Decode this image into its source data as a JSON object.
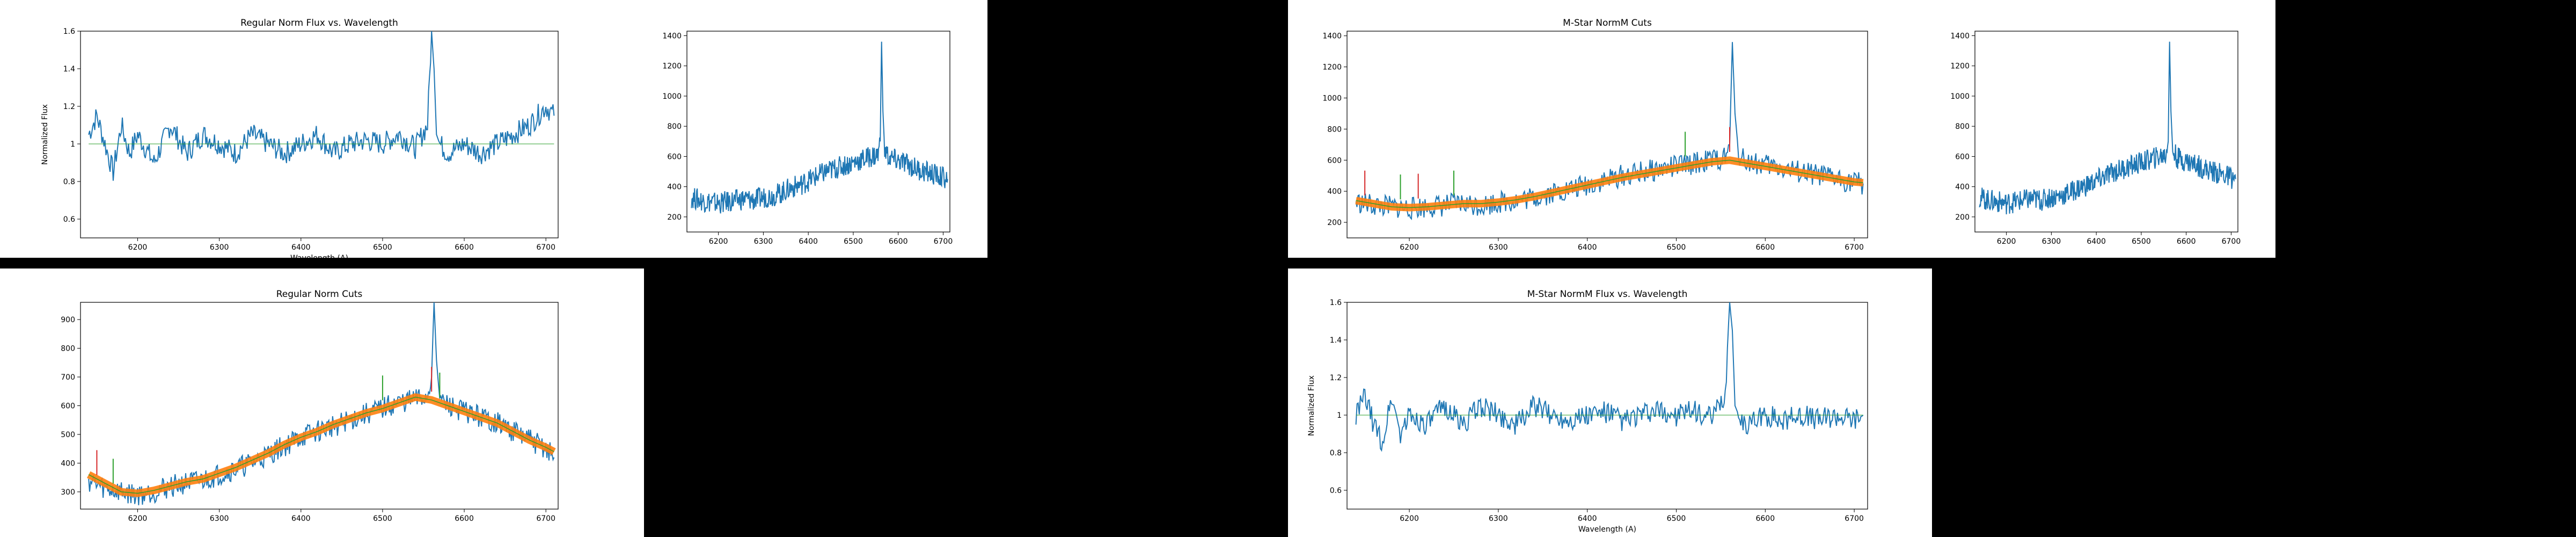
{
  "colors": {
    "spectrum": "#1f77b4",
    "fit": "#ff7f0e",
    "fit_line": "#2ca02c",
    "cut_red": "#d62728",
    "cut_green": "#2ca02c",
    "background": "#000000",
    "panel": "#ffffff"
  },
  "chart_data": [
    {
      "id": "regular-norm-flux",
      "type": "line",
      "title": "Regular Norm Flux vs. Wavelength",
      "xlabel": "Wavelength (A)",
      "ylabel": "Normalized Flux",
      "xlim": [
        6130,
        6715
      ],
      "ylim": [
        0.5,
        1.6
      ],
      "xticks": [
        6200,
        6300,
        6400,
        6500,
        6600,
        6700
      ],
      "yticks": [
        0.6,
        0.8,
        1.0,
        1.2,
        1.4,
        1.6
      ],
      "grid": false,
      "series": [
        {
          "x": [
            6140,
            6150,
            6160,
            6170,
            6180,
            6190,
            6200,
            6220,
            6240,
            6260,
            6280,
            6300,
            6320,
            6340,
            6360,
            6380,
            6400,
            6420,
            6440,
            6460,
            6480,
            6500,
            6520,
            6540,
            6555,
            6560,
            6563,
            6566,
            6570,
            6580,
            6600,
            6620,
            6640,
            6660,
            6680,
            6700,
            6710
          ],
          "y": [
            1.05,
            1.15,
            1.0,
            0.85,
            1.1,
            0.95,
            1.05,
            0.9,
            1.1,
            0.95,
            1.05,
            1.0,
            0.95,
            1.05,
            1.0,
            0.95,
            1.0,
            1.05,
            0.95,
            1.0,
            1.02,
            1.0,
            1.05,
            0.98,
            1.1,
            1.6,
            1.4,
            1.05,
            1.0,
            0.95,
            1.0,
            0.95,
            1.0,
            1.05,
            1.1,
            1.2,
            1.15
          ]
        }
      ],
      "continuum": {
        "x": [
          6140,
          6710
        ],
        "y": [
          1.0,
          1.0
        ]
      }
    },
    {
      "id": "raw-flux-top",
      "type": "line",
      "title": "",
      "xlabel": "",
      "ylabel": "",
      "xlim": [
        6130,
        6715
      ],
      "ylim": [
        100,
        1430
      ],
      "xticks": [
        6200,
        6300,
        6400,
        6500,
        6600,
        6700
      ],
      "yticks": [
        200,
        400,
        600,
        800,
        1000,
        1200,
        1400
      ],
      "grid": false,
      "series": [
        {
          "x": [
            6140,
            6160,
            6180,
            6200,
            6220,
            6240,
            6260,
            6280,
            6300,
            6320,
            6340,
            6360,
            6380,
            6400,
            6420,
            6440,
            6460,
            6480,
            6500,
            6520,
            6540,
            6555,
            6560,
            6563,
            6566,
            6570,
            6580,
            6600,
            6620,
            6640,
            6660,
            6680,
            6700,
            6710
          ],
          "y": [
            330,
            310,
            300,
            290,
            300,
            310,
            320,
            310,
            330,
            340,
            360,
            390,
            410,
            440,
            470,
            500,
            520,
            540,
            560,
            580,
            600,
            610,
            700,
            1360,
            900,
            640,
            590,
            570,
            550,
            520,
            500,
            480,
            460,
            450
          ]
        }
      ]
    },
    {
      "id": "mstar-normm-cuts",
      "type": "line",
      "title": "M-Star NormM Cuts",
      "xlabel": "",
      "ylabel": "",
      "xlim": [
        6130,
        6715
      ],
      "ylim": [
        100,
        1430
      ],
      "xticks": [
        6200,
        6300,
        6400,
        6500,
        6600,
        6700
      ],
      "yticks": [
        200,
        400,
        600,
        800,
        1000,
        1200,
        1400
      ],
      "grid": false,
      "series": [
        {
          "x": [
            6140,
            6160,
            6180,
            6200,
            6220,
            6240,
            6260,
            6280,
            6300,
            6320,
            6340,
            6360,
            6380,
            6400,
            6420,
            6440,
            6460,
            6480,
            6500,
            6520,
            6540,
            6555,
            6560,
            6563,
            6566,
            6570,
            6580,
            6600,
            6620,
            6640,
            6660,
            6680,
            6700,
            6710
          ],
          "y": [
            330,
            310,
            300,
            290,
            300,
            310,
            320,
            310,
            330,
            340,
            360,
            390,
            410,
            440,
            470,
            500,
            520,
            540,
            560,
            580,
            600,
            610,
            700,
            1360,
            900,
            640,
            590,
            570,
            550,
            520,
            500,
            480,
            460,
            450
          ]
        }
      ],
      "fit": {
        "x": [
          6140,
          6160,
          6180,
          6200,
          6220,
          6240,
          6260,
          6280,
          6300,
          6320,
          6340,
          6360,
          6380,
          6400,
          6420,
          6440,
          6460,
          6480,
          6500,
          6520,
          6540,
          6560,
          6580,
          6600,
          6620,
          6640,
          6660,
          6680,
          6700,
          6710
        ],
        "y": [
          340,
          320,
          300,
          295,
          300,
          310,
          320,
          320,
          330,
          345,
          365,
          390,
          415,
          440,
          465,
          490,
          510,
          530,
          550,
          570,
          590,
          600,
          580,
          560,
          540,
          520,
          500,
          480,
          460,
          455
        ]
      },
      "cuts_red": [
        6150,
        6210,
        6560
      ],
      "cuts_green": [
        6190,
        6250,
        6510
      ]
    },
    {
      "id": "raw-flux-right",
      "type": "line",
      "title": "",
      "xlabel": "",
      "ylabel": "",
      "xlim": [
        6130,
        6715
      ],
      "ylim": [
        100,
        1430
      ],
      "xticks": [
        6200,
        6300,
        6400,
        6500,
        6600,
        6700
      ],
      "yticks": [
        200,
        400,
        600,
        800,
        1000,
        1200,
        1400
      ],
      "grid": false,
      "series": [
        {
          "x": [
            6140,
            6160,
            6180,
            6200,
            6220,
            6240,
            6260,
            6280,
            6300,
            6320,
            6340,
            6360,
            6380,
            6400,
            6420,
            6440,
            6460,
            6480,
            6500,
            6520,
            6540,
            6555,
            6560,
            6563,
            6566,
            6570,
            6580,
            6600,
            6620,
            6640,
            6660,
            6680,
            6700,
            6710
          ],
          "y": [
            330,
            310,
            300,
            290,
            300,
            310,
            320,
            310,
            330,
            340,
            360,
            390,
            410,
            440,
            470,
            500,
            520,
            540,
            560,
            580,
            600,
            610,
            700,
            1360,
            900,
            640,
            590,
            570,
            550,
            520,
            500,
            480,
            460,
            450
          ]
        }
      ]
    },
    {
      "id": "regular-norm-cuts",
      "type": "line",
      "title": "Regular Norm Cuts",
      "xlabel": "",
      "ylabel": "",
      "xlim": [
        6130,
        6715
      ],
      "ylim": [
        240,
        960
      ],
      "xticks": [
        6200,
        6300,
        6400,
        6500,
        6600,
        6700
      ],
      "yticks": [
        300,
        400,
        500,
        600,
        700,
        800,
        900
      ],
      "grid": false,
      "series": [
        {
          "x": [
            6140,
            6160,
            6180,
            6200,
            6220,
            6240,
            6260,
            6280,
            6300,
            6320,
            6340,
            6360,
            6380,
            6400,
            6420,
            6440,
            6460,
            6480,
            6500,
            6520,
            6540,
            6555,
            6560,
            6563,
            6566,
            6570,
            6580,
            6600,
            6620,
            6640,
            6660,
            6680,
            6700,
            6710
          ],
          "y": [
            340,
            310,
            300,
            290,
            300,
            320,
            330,
            340,
            360,
            380,
            400,
            430,
            460,
            490,
            510,
            530,
            550,
            570,
            590,
            610,
            620,
            630,
            700,
            960,
            760,
            620,
            600,
            580,
            560,
            540,
            510,
            480,
            450,
            420
          ]
        }
      ],
      "fit": {
        "x": [
          6140,
          6160,
          6180,
          6200,
          6220,
          6240,
          6260,
          6280,
          6300,
          6320,
          6340,
          6360,
          6380,
          6400,
          6420,
          6440,
          6460,
          6480,
          6500,
          6520,
          6540,
          6560,
          6580,
          6600,
          6620,
          6640,
          6660,
          6680,
          6700,
          6710
        ],
        "y": [
          360,
          330,
          300,
          295,
          305,
          320,
          335,
          345,
          365,
          385,
          410,
          435,
          465,
          490,
          510,
          535,
          555,
          575,
          590,
          610,
          630,
          620,
          600,
          580,
          560,
          540,
          510,
          480,
          455,
          440
        ]
      },
      "cuts_red": [
        6150,
        6560
      ],
      "cuts_green": [
        6170,
        6500,
        6570
      ]
    },
    {
      "id": "mstar-normm-flux",
      "type": "line",
      "title": "M-Star NormM Flux vs. Wavelength",
      "xlabel": "Wavelength (A)",
      "ylabel": "Normalized Flux",
      "xlim": [
        6130,
        6715
      ],
      "ylim": [
        0.5,
        1.6
      ],
      "xticks": [
        6200,
        6300,
        6400,
        6500,
        6600,
        6700
      ],
      "yticks": [
        0.6,
        0.8,
        1.0,
        1.2,
        1.4,
        1.6
      ],
      "grid": false,
      "series": [
        {
          "x": [
            6140,
            6150,
            6160,
            6170,
            6180,
            6190,
            6200,
            6220,
            6240,
            6260,
            6280,
            6300,
            6320,
            6340,
            6360,
            6380,
            6400,
            6420,
            6440,
            6460,
            6480,
            6500,
            6520,
            6540,
            6555,
            6560,
            6563,
            6566,
            6570,
            6580,
            6600,
            6620,
            6640,
            6660,
            6680,
            6700,
            6710
          ],
          "y": [
            1.0,
            1.1,
            0.95,
            0.85,
            1.1,
            0.9,
            1.0,
            0.95,
            1.05,
            0.95,
            1.05,
            1.0,
            0.95,
            1.05,
            1.0,
            0.98,
            1.0,
            1.02,
            0.97,
            1.0,
            1.02,
            1.0,
            1.02,
            0.98,
            1.1,
            1.6,
            1.45,
            1.05,
            1.0,
            0.95,
            1.0,
            0.97,
            1.0,
            0.98,
            1.0,
            0.98,
            1.0
          ]
        }
      ],
      "continuum": {
        "x": [
          6140,
          6710
        ],
        "y": [
          1.0,
          1.0
        ]
      }
    }
  ]
}
